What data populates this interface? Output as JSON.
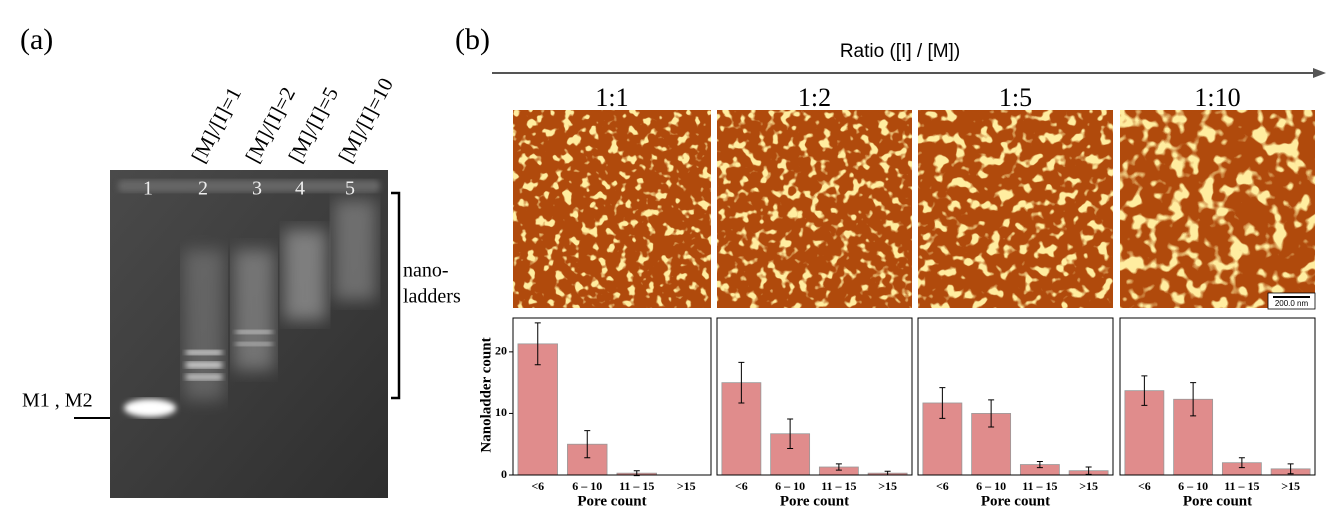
{
  "panel_a": {
    "label": "(a)",
    "lane_headers": [
      "[M]/[I]=1",
      "[M]/[I]=2",
      "[M]/[I]=5",
      "[M]/[I]=10"
    ],
    "lane_numbers": [
      "1",
      "2",
      "3",
      "4",
      "5"
    ],
    "marker_label": "M1 , M2",
    "bracket_label": [
      "nano-",
      "ladders"
    ]
  },
  "panel_b": {
    "label": "(b)",
    "axis_title": "Ratio ([I] / [M])",
    "ratios": [
      "1:1",
      "1:2",
      "1:5",
      "1:10"
    ],
    "scale_bar": "200.0 nm"
  },
  "chart_data": [
    {
      "type": "bar",
      "ylabel": "Nanoladder count",
      "xlabel": "Pore count",
      "categories": [
        "<6",
        "6 – 10",
        "11 – 15",
        ">15"
      ],
      "values": [
        21.3,
        5.0,
        0.3,
        0
      ],
      "errors": [
        3.4,
        2.2,
        0.4,
        0
      ],
      "color": "#e08c8c",
      "ylim": [
        0,
        25.5
      ],
      "yticks": [
        0,
        10,
        20
      ]
    },
    {
      "type": "bar",
      "xlabel": "Pore count",
      "categories": [
        "<6",
        "6 – 10",
        "11 – 15",
        ">15"
      ],
      "values": [
        15.0,
        6.7,
        1.3,
        0.3
      ],
      "errors": [
        3.3,
        2.4,
        0.5,
        0.3
      ],
      "color": "#e08c8c",
      "ylim": [
        0,
        25.5
      ]
    },
    {
      "type": "bar",
      "xlabel": "Pore count",
      "categories": [
        "<6",
        "6 – 10",
        "11 – 15",
        ">15"
      ],
      "values": [
        11.7,
        10.0,
        1.7,
        0.7
      ],
      "errors": [
        2.5,
        2.2,
        0.5,
        0.6
      ],
      "color": "#e08c8c",
      "ylim": [
        0,
        25.5
      ]
    },
    {
      "type": "bar",
      "xlabel": "Pore count",
      "categories": [
        "<6",
        "6 – 10",
        "11 – 15",
        ">15"
      ],
      "values": [
        13.7,
        12.3,
        2.0,
        1.0
      ],
      "errors": [
        2.4,
        2.7,
        0.8,
        0.8
      ],
      "color": "#e08c8c",
      "ylim": [
        0,
        25.5
      ]
    }
  ]
}
